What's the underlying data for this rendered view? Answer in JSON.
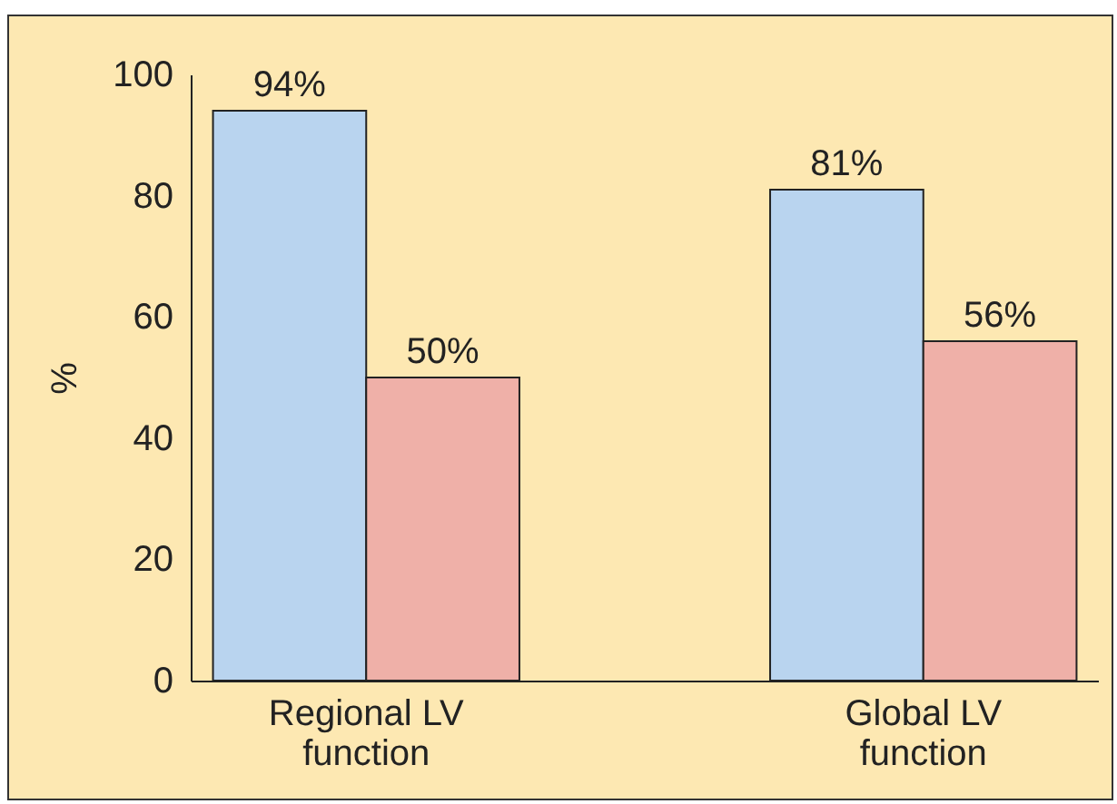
{
  "chart_data": {
    "type": "bar",
    "ylabel": "%",
    "categories": [
      "Regional LV function",
      "Global LV function"
    ],
    "series": [
      {
        "color": "#b9d4ef",
        "values": [
          94,
          81
        ],
        "value_labels": [
          "94%",
          "81%"
        ]
      },
      {
        "color": "#efb0a8",
        "values": [
          50,
          56
        ],
        "value_labels": [
          "50%",
          "56%"
        ]
      }
    ],
    "ylim": [
      0,
      100
    ],
    "yticks": [
      0,
      20,
      40,
      60,
      80,
      100
    ],
    "grid": false,
    "legend": false
  }
}
